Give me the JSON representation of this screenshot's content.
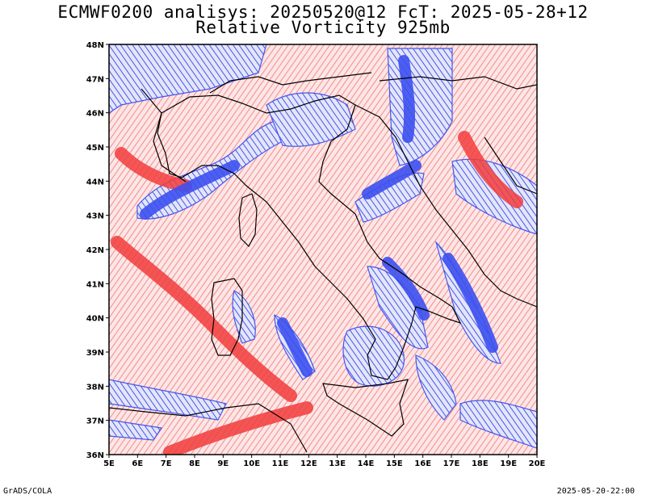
{
  "header": {
    "title": "ECMWF0200 analisys: 20250520@12 FcT: 2025-05-28+12",
    "subtitle": "Relative Vorticity 925mb"
  },
  "footer": {
    "left": "GrADS/COLA",
    "right": "2025-05-20-22:00"
  },
  "map": {
    "lat_labels": [
      "48N",
      "47N",
      "46N",
      "45N",
      "44N",
      "43N",
      "42N",
      "41N",
      "40N",
      "39N",
      "38N",
      "37N",
      "36N"
    ],
    "lon_labels": [
      "5E",
      "6E",
      "7E",
      "8E",
      "9E",
      "10E",
      "11E",
      "12E",
      "13E",
      "14E",
      "15E",
      "16E",
      "17E",
      "18E",
      "19E",
      "20E"
    ],
    "colors": {
      "positive": "#f23c3c",
      "negative": "#3c50f0",
      "coast": "#000000"
    }
  }
}
